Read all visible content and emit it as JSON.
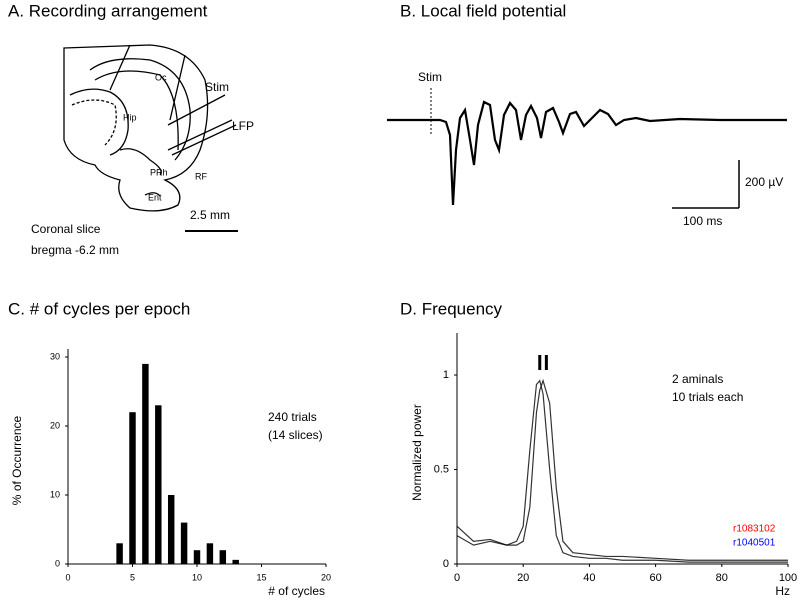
{
  "panel_a": {
    "title": "A. Recording arrangement",
    "labels": [
      "Oc",
      "Stim",
      "Hip",
      "LFP",
      "PRh",
      "RF",
      "Ent"
    ],
    "scale": "2.5 mm",
    "caption": [
      "Coronal slice",
      "bregma  -6.2 mm"
    ]
  },
  "panel_b": {
    "title": "B. Local field potential",
    "stim": "Stim",
    "scale_v": "200 µV",
    "scale_t": "100 ms"
  },
  "chart_data": [
    {
      "type": "bar",
      "title": "C. # of cycles per epoch",
      "xlabel": "# of cycles",
      "ylabel": "% of Occurrence",
      "x": [
        4,
        5,
        6,
        7,
        8,
        9,
        10,
        11,
        12,
        13
      ],
      "values": [
        3,
        22,
        29,
        23,
        10,
        6,
        2,
        3,
        2,
        0.6
      ],
      "color": "#000000",
      "xlim": [
        0,
        20
      ],
      "xticks": [
        0,
        5,
        10,
        15,
        20
      ],
      "ylim": [
        0,
        30
      ],
      "yticks": [
        0,
        10,
        20,
        30
      ],
      "annotations": [
        "240 trials",
        "(14 slices)"
      ]
    },
    {
      "type": "line",
      "title": "D. Frequency",
      "xlabel": "Hz",
      "ylabel": "Normalized power",
      "x": [
        0,
        5,
        10,
        15,
        18,
        20,
        22,
        24,
        25,
        26,
        28,
        30,
        32,
        35,
        40,
        45,
        50,
        60,
        70,
        80,
        90,
        100
      ],
      "series": [
        {
          "name": "r1083102",
          "color": "#ff0000",
          "peak": 25,
          "values": [
            0.2,
            0.12,
            0.13,
            0.1,
            0.12,
            0.2,
            0.6,
            0.95,
            0.97,
            0.9,
            0.5,
            0.15,
            0.06,
            0.04,
            0.03,
            0.03,
            0.02,
            0.02,
            0.01,
            0.01,
            0.01,
            0.01
          ]
        },
        {
          "name": "r1040501",
          "color": "#0000ff",
          "peak": 27,
          "values": [
            0.15,
            0.1,
            0.12,
            0.1,
            0.1,
            0.12,
            0.3,
            0.8,
            0.92,
            0.97,
            0.85,
            0.4,
            0.12,
            0.06,
            0.05,
            0.04,
            0.04,
            0.03,
            0.02,
            0.02,
            0.02,
            0.02
          ]
        }
      ],
      "xlim": [
        0,
        100
      ],
      "xticks": [
        0,
        20,
        40,
        60,
        80,
        100
      ],
      "ylim": [
        0,
        1.18
      ],
      "yticks": [
        0,
        0.5,
        1
      ],
      "annotations": [
        "2 aminals",
        "10 trials each"
      ]
    }
  ]
}
